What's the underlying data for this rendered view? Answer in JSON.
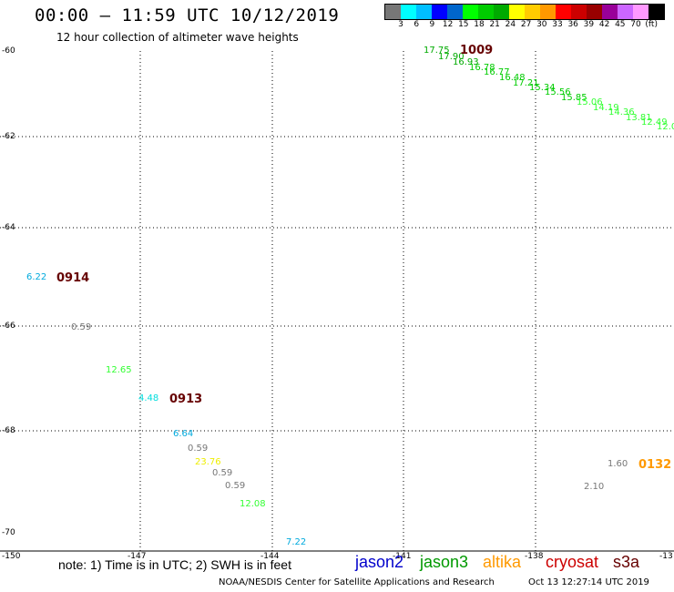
{
  "header": {
    "title": "00:00 – 11:59 UTC 10/12/2019",
    "subtitle": "12 hour collection of altimeter wave heights"
  },
  "legend": {
    "unit": "(ft)",
    "colors": [
      "#777777",
      "#00ffff",
      "#00bfff",
      "#0000ff",
      "#0066cc",
      "#00ff00",
      "#00cc00",
      "#00aa00",
      "#ffff00",
      "#ffcc00",
      "#ff9900",
      "#ff0000",
      "#cc0000",
      "#990000",
      "#990099",
      "#cc66ff",
      "#ff99ff",
      "#000000"
    ],
    "labels": [
      "3",
      "6",
      "9",
      "12",
      "15",
      "18",
      "21",
      "24",
      "27",
      "30",
      "33",
      "36",
      "39",
      "42",
      "45",
      "70"
    ]
  },
  "axes": {
    "lat_labels": [
      "-60",
      "-62",
      "-64",
      "-66",
      "-68",
      "-70"
    ],
    "lon_labels": [
      "-150",
      "-147",
      "-144",
      "-141",
      "-138",
      "-13"
    ]
  },
  "points": [
    {
      "v": "17.75",
      "c": "#00aa00"
    },
    {
      "v": "17.90",
      "c": "#00aa00"
    },
    {
      "v": "16.93",
      "c": "#00aa00"
    },
    {
      "v": "16.78",
      "c": "#00cc00"
    },
    {
      "v": "16.77",
      "c": "#00cc00"
    },
    {
      "v": "16.48",
      "c": "#00cc00"
    },
    {
      "v": "17.21",
      "c": "#00cc00"
    },
    {
      "v": "15.34",
      "c": "#00cc00"
    },
    {
      "v": "15.56",
      "c": "#00cc00"
    },
    {
      "v": "15.85",
      "c": "#00cc00"
    },
    {
      "v": "15.06",
      "c": "#33ff33"
    },
    {
      "v": "14.19",
      "c": "#33ff33"
    },
    {
      "v": "14.36",
      "c": "#33ff33"
    },
    {
      "v": "13.81",
      "c": "#33ff33"
    },
    {
      "v": "12.49",
      "c": "#33ff33"
    },
    {
      "v": "12.01",
      "c": "#33ff33"
    },
    {
      "v": "6.22",
      "c": "#00aadd"
    },
    {
      "v": "0.59",
      "c": "#777777"
    },
    {
      "v": "12.65",
      "c": "#33ff33"
    },
    {
      "v": "4.48",
      "c": "#00dddd"
    },
    {
      "v": "6.64",
      "c": "#00aadd"
    },
    {
      "v": "0.59",
      "c": "#777777"
    },
    {
      "v": "23.76",
      "c": "#eeee00"
    },
    {
      "v": "0.59",
      "c": "#777777"
    },
    {
      "v": "0.59",
      "c": "#777777"
    },
    {
      "v": "12.08",
      "c": "#33ff33"
    },
    {
      "v": "7.22",
      "c": "#00aadd"
    },
    {
      "v": "1.60",
      "c": "#777777"
    },
    {
      "v": "2.10",
      "c": "#777777"
    }
  ],
  "passes": [
    "1009",
    "0914",
    "0913",
    "0132"
  ],
  "footer": {
    "note": "note: 1) Time is in UTC; 2) SWH is in feet",
    "satellites": [
      {
        "name": "jason2",
        "color": "#0000cc"
      },
      {
        "name": "jason3",
        "color": "#009900"
      },
      {
        "name": "altika",
        "color": "#ff9900"
      },
      {
        "name": "cryosat",
        "color": "#cc0000"
      },
      {
        "name": "s3a",
        "color": "#660000"
      }
    ],
    "credit": "NOAA/NESDIS Center for Satellite Applications and Research",
    "timestamp": "Oct 13 12:27:14 UTC 2019"
  }
}
